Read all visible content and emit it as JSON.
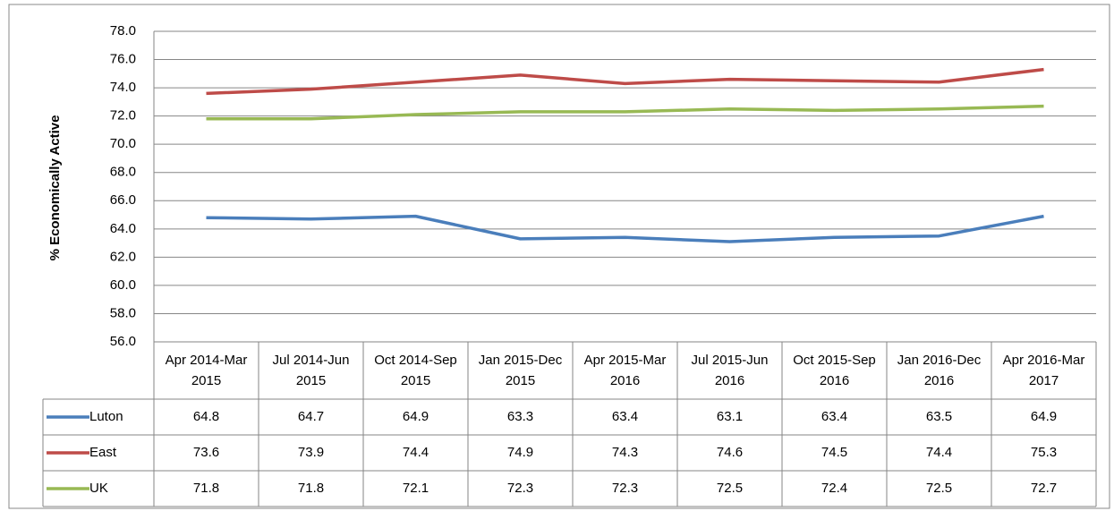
{
  "chart_data": {
    "type": "line",
    "y_label": "% Economically Active",
    "categories": [
      "Apr 2014-Mar 2015",
      "Jul 2014-Jun 2015",
      "Oct 2014-Sep 2015",
      "Jan 2015-Dec 2015",
      "Apr 2015-Mar 2016",
      "Jul 2015-Jun 2016",
      "Oct 2015-Sep 2016",
      "Jan 2016-Dec 2016",
      "Apr 2016-Mar 2017"
    ],
    "series": [
      {
        "name": "Luton",
        "color": "#4a7ebb",
        "values": [
          64.8,
          64.7,
          64.9,
          63.3,
          63.4,
          63.1,
          63.4,
          63.5,
          64.9
        ]
      },
      {
        "name": "East",
        "color": "#be4b48",
        "values": [
          73.6,
          73.9,
          74.4,
          74.9,
          74.3,
          74.6,
          74.5,
          74.4,
          75.3
        ]
      },
      {
        "name": "UK",
        "color": "#98b954",
        "values": [
          71.8,
          71.8,
          72.1,
          72.3,
          72.3,
          72.5,
          72.4,
          72.5,
          72.7
        ]
      }
    ],
    "ylim": [
      56,
      78
    ],
    "yticks": [
      {
        "value": 56,
        "label": "56.0"
      },
      {
        "value": 58,
        "label": "58.0"
      },
      {
        "value": 60,
        "label": "60.0"
      },
      {
        "value": 62,
        "label": "62.0"
      },
      {
        "value": 64,
        "label": "64.0"
      },
      {
        "value": 66,
        "label": "66.0"
      },
      {
        "value": 68,
        "label": "68.0"
      },
      {
        "value": 70,
        "label": "70.0"
      },
      {
        "value": 72,
        "label": "72.0"
      },
      {
        "value": 74,
        "label": "74.0"
      },
      {
        "value": 76,
        "label": "76.0"
      },
      {
        "value": 78,
        "label": "78.0"
      }
    ],
    "grid": true,
    "data_table": true
  }
}
